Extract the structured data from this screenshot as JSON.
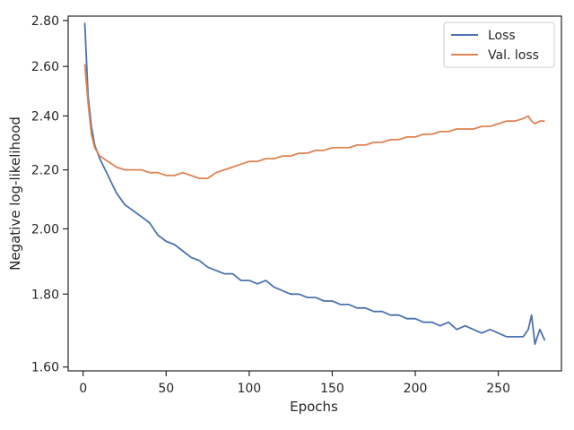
{
  "chart_data": {
    "type": "line",
    "xlabel": "Epochs",
    "ylabel": "Negative log-likelihood",
    "xlim": [
      -9,
      288
    ],
    "ylim": [
      1.59,
      2.82
    ],
    "y_scale": "log",
    "x_ticks": [
      0,
      50,
      100,
      150,
      200,
      250
    ],
    "y_ticks": [
      1.6,
      1.8,
      2.0,
      2.2,
      2.4,
      2.6,
      2.8
    ],
    "y_tick_labels": [
      "1.60",
      "1.80",
      "2.00",
      "2.20",
      "2.40",
      "2.60",
      "2.80"
    ],
    "legend": {
      "placement": "top-right"
    },
    "grid": false,
    "series": [
      {
        "name": "Loss",
        "color": "#4c72b0",
        "x": [
          1,
          3,
          5,
          7,
          10,
          15,
          20,
          25,
          30,
          35,
          40,
          45,
          50,
          55,
          60,
          65,
          70,
          75,
          80,
          85,
          90,
          95,
          100,
          105,
          110,
          115,
          120,
          125,
          130,
          135,
          140,
          145,
          150,
          155,
          160,
          165,
          170,
          175,
          180,
          185,
          190,
          195,
          200,
          205,
          210,
          215,
          220,
          225,
          230,
          235,
          240,
          245,
          250,
          255,
          260,
          265,
          268,
          270,
          272,
          275,
          278
        ],
        "values": [
          2.79,
          2.48,
          2.36,
          2.29,
          2.24,
          2.18,
          2.12,
          2.08,
          2.06,
          2.04,
          2.02,
          1.98,
          1.96,
          1.95,
          1.93,
          1.91,
          1.9,
          1.88,
          1.87,
          1.86,
          1.86,
          1.84,
          1.84,
          1.83,
          1.84,
          1.82,
          1.81,
          1.8,
          1.8,
          1.79,
          1.79,
          1.78,
          1.78,
          1.77,
          1.77,
          1.76,
          1.76,
          1.75,
          1.75,
          1.74,
          1.74,
          1.73,
          1.73,
          1.72,
          1.72,
          1.71,
          1.72,
          1.7,
          1.71,
          1.7,
          1.69,
          1.7,
          1.69,
          1.68,
          1.68,
          1.68,
          1.7,
          1.74,
          1.66,
          1.7,
          1.67
        ]
      },
      {
        "name": "Val. loss",
        "color": "#dd8452",
        "x": [
          1,
          3,
          5,
          7,
          10,
          15,
          20,
          25,
          30,
          35,
          40,
          45,
          50,
          55,
          60,
          65,
          70,
          75,
          80,
          85,
          90,
          95,
          100,
          105,
          110,
          115,
          120,
          125,
          130,
          135,
          140,
          145,
          150,
          155,
          160,
          165,
          170,
          175,
          180,
          185,
          190,
          195,
          200,
          205,
          210,
          215,
          220,
          225,
          230,
          235,
          240,
          245,
          250,
          255,
          260,
          265,
          268,
          270,
          272,
          275,
          278
        ],
        "values": [
          2.61,
          2.45,
          2.33,
          2.28,
          2.25,
          2.23,
          2.21,
          2.2,
          2.2,
          2.2,
          2.19,
          2.19,
          2.18,
          2.18,
          2.19,
          2.18,
          2.17,
          2.17,
          2.19,
          2.2,
          2.21,
          2.22,
          2.23,
          2.23,
          2.24,
          2.24,
          2.25,
          2.25,
          2.26,
          2.26,
          2.27,
          2.27,
          2.28,
          2.28,
          2.28,
          2.29,
          2.29,
          2.3,
          2.3,
          2.31,
          2.31,
          2.32,
          2.32,
          2.33,
          2.33,
          2.34,
          2.34,
          2.35,
          2.35,
          2.35,
          2.36,
          2.36,
          2.37,
          2.38,
          2.38,
          2.39,
          2.4,
          2.38,
          2.37,
          2.38,
          2.38
        ]
      }
    ]
  }
}
